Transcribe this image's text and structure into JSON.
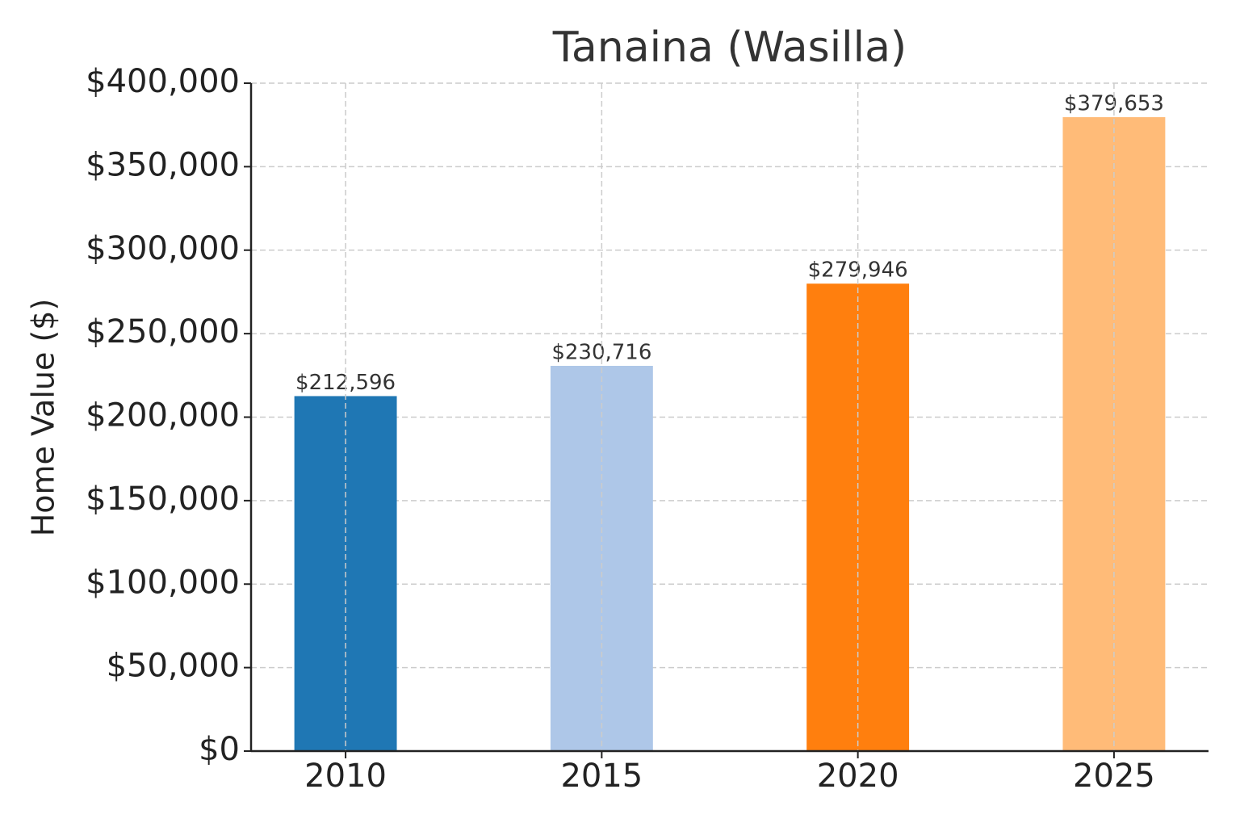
{
  "chart_data": {
    "type": "bar",
    "title": "Tanaina (Wasilla)",
    "y_label": "Home Value ($)",
    "categories": [
      "2010",
      "2015",
      "2020",
      "2025"
    ],
    "values": [
      212596,
      230716,
      279946,
      379653
    ],
    "value_labels": [
      "$212,596",
      "$230,716",
      "$279,946",
      "$379,653"
    ],
    "colors": [
      "#1f77b4",
      "#aec7e8",
      "#ff7f0e",
      "#ffbb78"
    ],
    "ylim": [
      0,
      400000
    ],
    "yticks": [
      {
        "value": 0,
        "label": "$0"
      },
      {
        "value": 50000,
        "label": "$50,000"
      },
      {
        "value": 100000,
        "label": "$100,000"
      },
      {
        "value": 150000,
        "label": "$150,000"
      },
      {
        "value": 200000,
        "label": "$200,000"
      },
      {
        "value": 250000,
        "label": "$250,000"
      },
      {
        "value": 300000,
        "label": "$300,000"
      },
      {
        "value": 350000,
        "label": "$350,000"
      },
      {
        "value": 400000,
        "label": "$400,000"
      }
    ],
    "grid": true
  }
}
